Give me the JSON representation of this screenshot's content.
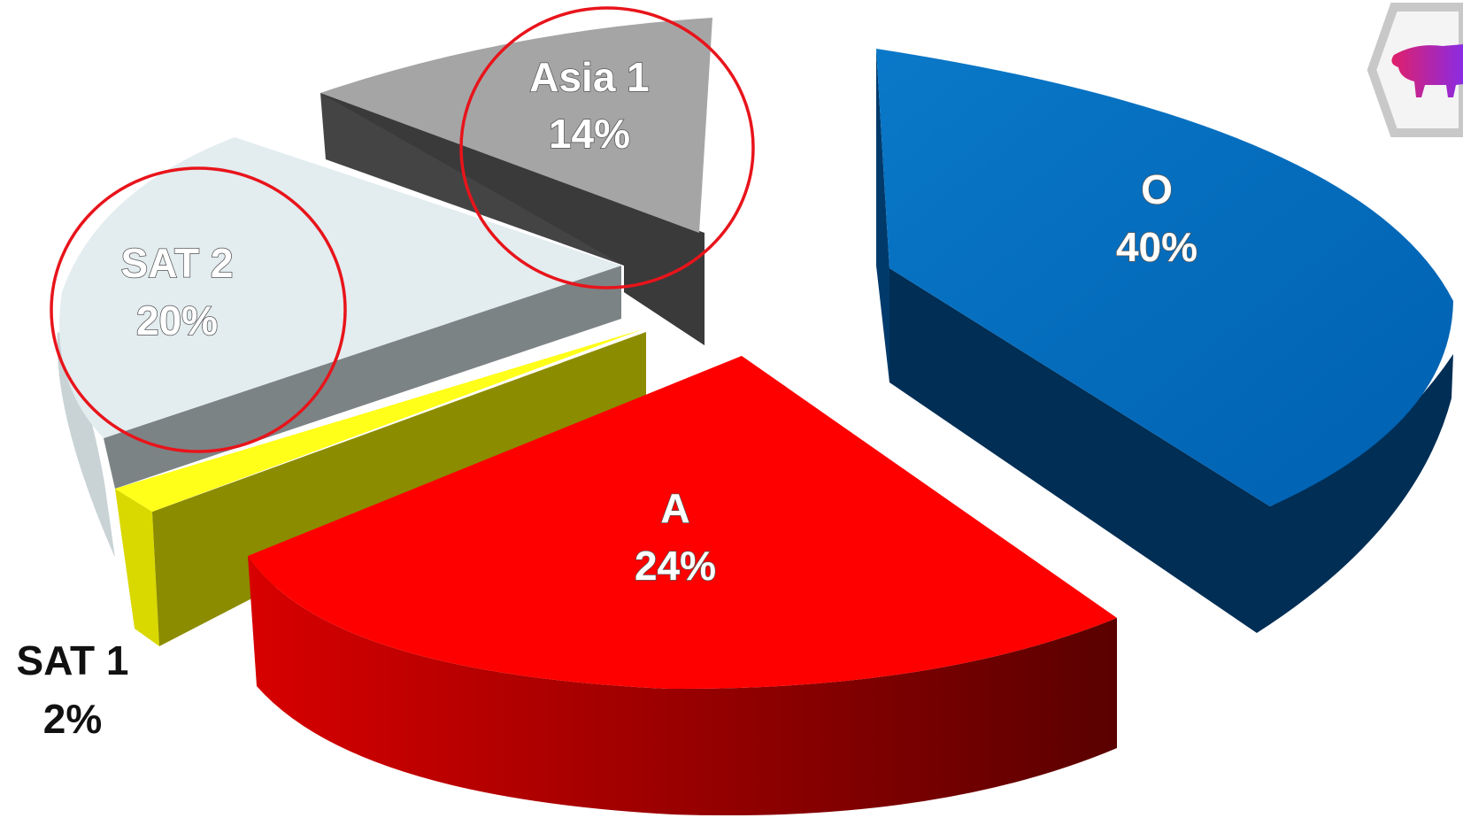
{
  "chart_data": {
    "type": "pie",
    "style": "3d-exploded",
    "title": "",
    "slices": [
      {
        "name": "O",
        "label": "O",
        "pct_label": "40%",
        "value": 40,
        "color": "#0070C0"
      },
      {
        "name": "A",
        "label": "A",
        "pct_label": "24%",
        "value": 24,
        "color": "#FF0000"
      },
      {
        "name": "SAT 1",
        "label": "SAT 1",
        "pct_label": "2%",
        "value": 2,
        "color": "#FFFF00"
      },
      {
        "name": "SAT 2",
        "label": "SAT 2",
        "pct_label": "20%",
        "value": 20,
        "color": "#DCE9EE"
      },
      {
        "name": "Asia 1",
        "label": "Asia 1",
        "pct_label": "14%",
        "value": 14,
        "color": "#A6A6A6"
      }
    ],
    "highlighted": [
      "SAT 2",
      "Asia 1"
    ],
    "highlight_color": "#E8141B"
  },
  "logo": {
    "icon": "bull-icon",
    "color": "#CC2A8F"
  }
}
